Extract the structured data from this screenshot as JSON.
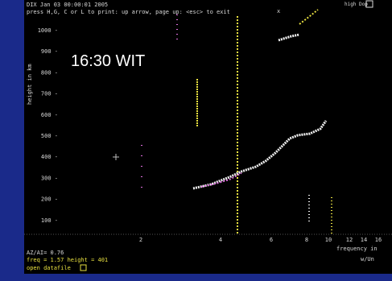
{
  "header": {
    "station": "DIX Jan 03 00:00:01 2005",
    "close": "x",
    "toggle": "high Dop",
    "help": "press H,G, C or L to print: up arrow, page up: <esc> to exit"
  },
  "overlay_label": "16:30 WIT",
  "y_axis": {
    "label": "height in km",
    "ticks": [
      "1000 -",
      "900 -",
      "800 -",
      "700 -",
      "600 -",
      "500 -",
      "400 -",
      "300 -",
      "200 -",
      "100 -"
    ]
  },
  "x_axis": {
    "label": "frequency in",
    "units": "w/Un",
    "ticks": [
      "2",
      "4",
      "6",
      "8",
      "10",
      "12",
      "14",
      "16"
    ]
  },
  "status": {
    "ratio": "AZ/AI= 0.76",
    "cursor": "freq = 1.57 height = 401",
    "open": "open datafile"
  }
}
